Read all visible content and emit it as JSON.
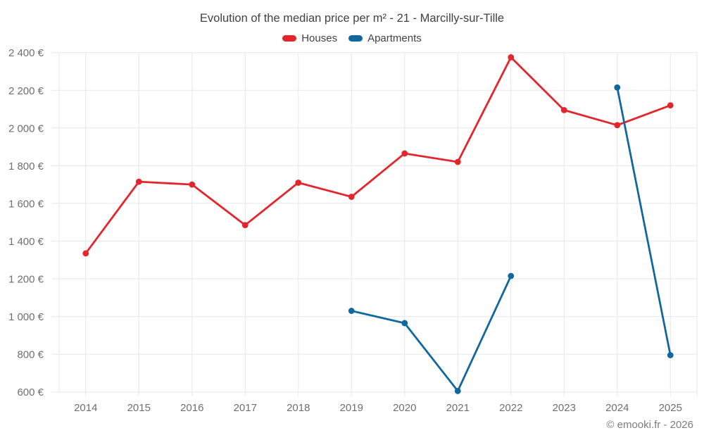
{
  "title": "Evolution of the median price per m² - 21 - Marcilly-sur-Tille",
  "footer": "© emooki.fr - 2026",
  "colors": {
    "houses": "#e2262b",
    "apartments": "#11689f",
    "grid": "#e7e7e7",
    "tick_text": "#6f6f6f",
    "title_text": "#424242",
    "footer_text": "#7d7d7d"
  },
  "chart_data": {
    "type": "line",
    "title": "Evolution of the median price per m² - 21 - Marcilly-sur-Tille",
    "categories": [
      "2014",
      "2015",
      "2016",
      "2017",
      "2018",
      "2019",
      "2020",
      "2021",
      "2022",
      "2023",
      "2024",
      "2025"
    ],
    "series": [
      {
        "name": "Houses",
        "color": "#e2262b",
        "values": [
          1335,
          1715,
          1700,
          1485,
          1710,
          1635,
          1865,
          1820,
          2375,
          2095,
          2015,
          2120
        ]
      },
      {
        "name": "Apartments",
        "color": "#11689f",
        "values": [
          null,
          null,
          null,
          null,
          null,
          1030,
          965,
          605,
          1215,
          null,
          2215,
          795
        ]
      }
    ],
    "xlabel": "",
    "ylabel": "",
    "ylim": [
      600,
      2400
    ],
    "ytick_step": 200,
    "ytick_labels": [
      "600 €",
      "800 €",
      "1 000 €",
      "1 200 €",
      "1 400 €",
      "1 600 €",
      "1 800 €",
      "2 000 €",
      "2 200 €",
      "2 400 €"
    ],
    "grid": true,
    "legend_position": "top",
    "currency": "€"
  }
}
